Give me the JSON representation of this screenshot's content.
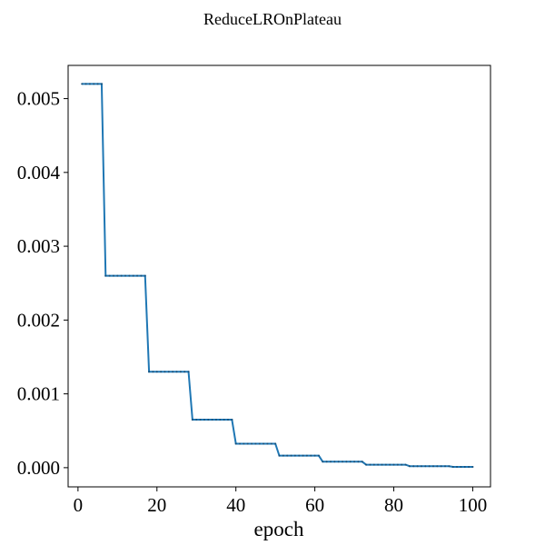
{
  "chart_data": {
    "type": "line",
    "title": "ReduceLROnPlateau",
    "xlabel": "epoch",
    "ylabel": "",
    "xlim": [
      -2.5,
      104.5
    ],
    "ylim": [
      -0.00026,
      0.00545
    ],
    "xticks": [
      0,
      20,
      40,
      60,
      80,
      100
    ],
    "xtick_labels": [
      "0",
      "20",
      "40",
      "60",
      "80",
      "100"
    ],
    "yticks": [
      0.0,
      0.001,
      0.002,
      0.003,
      0.004,
      0.005
    ],
    "ytick_labels": [
      "0.000",
      "0.001",
      "0.002",
      "0.003",
      "0.004",
      "0.005"
    ],
    "grid": false,
    "series": [
      {
        "color": "#1f77b4",
        "steps": [
          {
            "x_start": 1,
            "x_end": 6,
            "y": 0.0052
          },
          {
            "x_start": 7,
            "x_end": 17,
            "y": 0.0026
          },
          {
            "x_start": 18,
            "x_end": 28,
            "y": 0.0013
          },
          {
            "x_start": 29,
            "x_end": 39,
            "y": 0.00065
          },
          {
            "x_start": 40,
            "x_end": 50,
            "y": 0.000325
          },
          {
            "x_start": 51,
            "x_end": 61,
            "y": 0.0001625
          },
          {
            "x_start": 62,
            "x_end": 72,
            "y": 8.125e-05
          },
          {
            "x_start": 73,
            "x_end": 83,
            "y": 4.06e-05
          },
          {
            "x_start": 84,
            "x_end": 94,
            "y": 2.03e-05
          },
          {
            "x_start": 95,
            "x_end": 100,
            "y": 1.02e-05
          }
        ]
      }
    ]
  }
}
